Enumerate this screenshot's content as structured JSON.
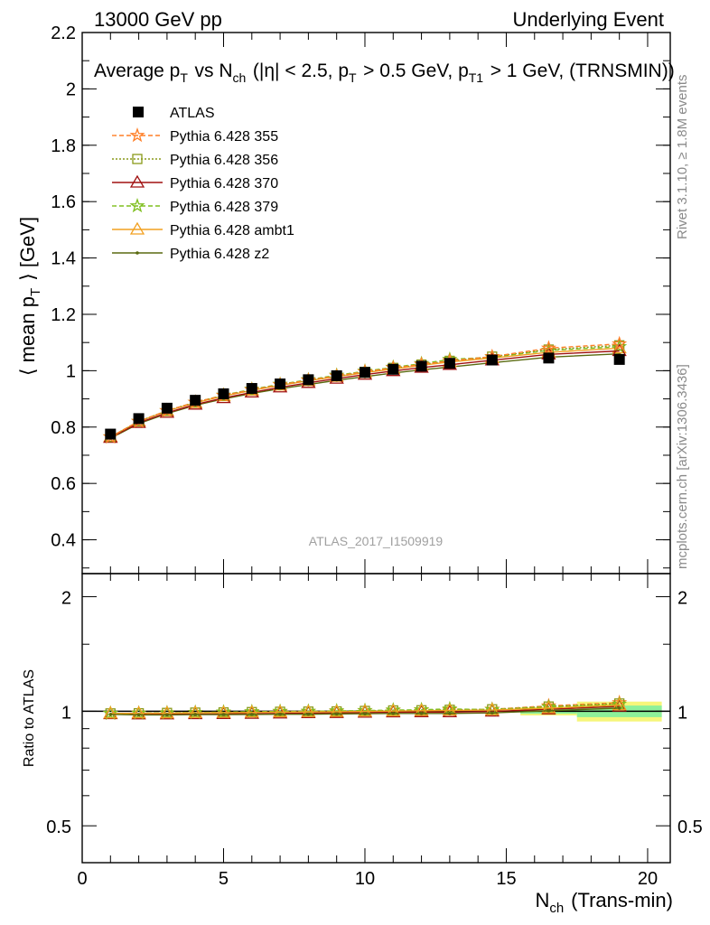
{
  "header": {
    "left": "13000 GeV pp",
    "right": "Underlying Event"
  },
  "side": {
    "events": "Rivet 3.1.10, ≥ 1.8M events",
    "ref": "mcplots.cern.ch [arXiv:1306.3436]"
  },
  "watermark": "ATLAS_2017_I1509919",
  "colors": {
    "atlas": "#000000",
    "p355": "#ff7f27",
    "p356": "#8a9a1a",
    "p370": "#a01010",
    "p379": "#7fbf1f",
    "ambt1": "#f2a020",
    "z2": "#5a6a10",
    "band_stat": "#8df09a",
    "band_syst": "#f6f67a"
  },
  "chart_data": [
    {
      "type": "line",
      "title": "Average p_T vs N_ch (|η| < 2.5, p_T > 0.5 GeV, p_T1 > 1 GeV, (TRNSMIN))",
      "xlabel": "N_ch (Trans-min)",
      "ylabel": "⟨ mean p_T ⟩ [GeV]",
      "xlim": [
        0,
        20.8
      ],
      "ylim": [
        0.28,
        2.2
      ],
      "y_ticks": [
        0.4,
        0.6,
        0.8,
        1.0,
        1.2,
        1.4,
        1.6,
        1.8,
        2.0,
        2.2
      ],
      "x": [
        1,
        2,
        3,
        4,
        5,
        6,
        7,
        8,
        9,
        10,
        11,
        12,
        13,
        14.5,
        16.5,
        19
      ],
      "legend_position": "top-left",
      "series": [
        {
          "name": "ATLAS",
          "marker": "square",
          "values": [
            0.775,
            0.83,
            0.867,
            0.895,
            0.918,
            0.937,
            0.953,
            0.968,
            0.982,
            0.994,
            1.005,
            1.016,
            1.026,
            1.038,
            1.045,
            1.04
          ]
        },
        {
          "name": "Pythia 6.428 355",
          "color_key": "p355",
          "dash": "5,3",
          "marker": "star",
          "values": [
            0.765,
            0.82,
            0.858,
            0.888,
            0.912,
            0.932,
            0.95,
            0.966,
            0.981,
            0.996,
            1.01,
            1.022,
            1.035,
            1.05,
            1.08,
            1.095
          ]
        },
        {
          "name": "Pythia 6.428 356",
          "color_key": "p356",
          "dash": "2,2",
          "marker": "open-square",
          "values": [
            0.765,
            0.82,
            0.858,
            0.888,
            0.912,
            0.932,
            0.95,
            0.966,
            0.981,
            0.996,
            1.01,
            1.022,
            1.035,
            1.05,
            1.075,
            1.09
          ]
        },
        {
          "name": "Pythia 6.428 370",
          "color_key": "p370",
          "dash": "",
          "marker": "open-triangle",
          "values": [
            0.762,
            0.815,
            0.851,
            0.88,
            0.903,
            0.923,
            0.941,
            0.957,
            0.972,
            0.986,
            0.999,
            1.011,
            1.021,
            1.037,
            1.058,
            1.07
          ]
        },
        {
          "name": "Pythia 6.428 379",
          "color_key": "p379",
          "dash": "5,3",
          "marker": "star",
          "values": [
            0.765,
            0.82,
            0.858,
            0.888,
            0.913,
            0.934,
            0.952,
            0.968,
            0.984,
            0.998,
            1.012,
            1.025,
            1.04,
            1.048,
            1.072,
            1.085
          ]
        },
        {
          "name": "Pythia 6.428 ambt1",
          "color_key": "ambt1",
          "dash": "",
          "marker": "open-triangle",
          "values": [
            0.765,
            0.82,
            0.857,
            0.886,
            0.91,
            0.93,
            0.948,
            0.964,
            0.979,
            0.993,
            1.006,
            1.019,
            1.031,
            1.045,
            1.065,
            1.08
          ]
        },
        {
          "name": "Pythia 6.428 z2",
          "color_key": "z2",
          "dash": "",
          "marker": "dot",
          "values": [
            0.76,
            0.812,
            0.848,
            0.877,
            0.9,
            0.919,
            0.936,
            0.951,
            0.966,
            0.979,
            0.992,
            1.003,
            1.013,
            1.028,
            1.048,
            1.06
          ]
        }
      ]
    },
    {
      "type": "line",
      "title": "",
      "xlabel": "N_ch (Trans-min)",
      "ylabel": "Ratio to ATLAS",
      "xlim": [
        0,
        20.8
      ],
      "ylim": [
        0.4,
        2.3
      ],
      "log_y": true,
      "y_tick_labels": [
        "0.5",
        "1",
        "2"
      ],
      "x_tick_labels": [
        "0",
        "5",
        "10",
        "15",
        "20"
      ],
      "x": [
        1,
        2,
        3,
        4,
        5,
        6,
        7,
        8,
        9,
        10,
        11,
        12,
        13,
        14.5,
        16.5,
        19
      ],
      "uncertainty_bands": [
        {
          "x_range": [
            15.5,
            17.5
          ],
          "stat": 0.015,
          "syst": 0.025
        },
        {
          "x_range": [
            17.5,
            20.5
          ],
          "stat": 0.035,
          "syst": 0.06
        }
      ],
      "series": [
        {
          "name": "Pythia 6.428 355",
          "values": [
            0.987,
            0.988,
            0.99,
            0.992,
            0.993,
            0.995,
            0.997,
            0.998,
            0.999,
            1.002,
            1.005,
            1.006,
            1.009,
            1.012,
            1.033,
            1.053
          ]
        },
        {
          "name": "Pythia 6.428 356",
          "values": [
            0.987,
            0.988,
            0.99,
            0.992,
            0.993,
            0.995,
            0.997,
            0.998,
            0.999,
            1.002,
            1.005,
            1.006,
            1.009,
            1.012,
            1.029,
            1.048
          ]
        },
        {
          "name": "Pythia 6.428 370",
          "values": [
            0.983,
            0.982,
            0.982,
            0.983,
            0.984,
            0.985,
            0.987,
            0.989,
            0.99,
            0.992,
            0.994,
            0.995,
            0.995,
            0.999,
            1.012,
            1.029
          ]
        },
        {
          "name": "Pythia 6.428 379",
          "values": [
            0.987,
            0.988,
            0.99,
            0.992,
            0.995,
            0.997,
            0.999,
            1.0,
            1.002,
            1.004,
            1.007,
            1.009,
            1.014,
            1.01,
            1.026,
            1.043
          ]
        },
        {
          "name": "Pythia 6.428 ambt1",
          "values": [
            0.987,
            0.988,
            0.988,
            0.99,
            0.991,
            0.993,
            0.995,
            0.996,
            0.997,
            0.999,
            1.001,
            1.003,
            1.005,
            1.007,
            1.019,
            1.038
          ]
        },
        {
          "name": "Pythia 6.428 z2",
          "values": [
            0.981,
            0.978,
            0.978,
            0.98,
            0.98,
            0.981,
            0.982,
            0.982,
            0.984,
            0.985,
            0.987,
            0.987,
            0.987,
            0.99,
            1.003,
            1.019
          ]
        }
      ]
    }
  ]
}
